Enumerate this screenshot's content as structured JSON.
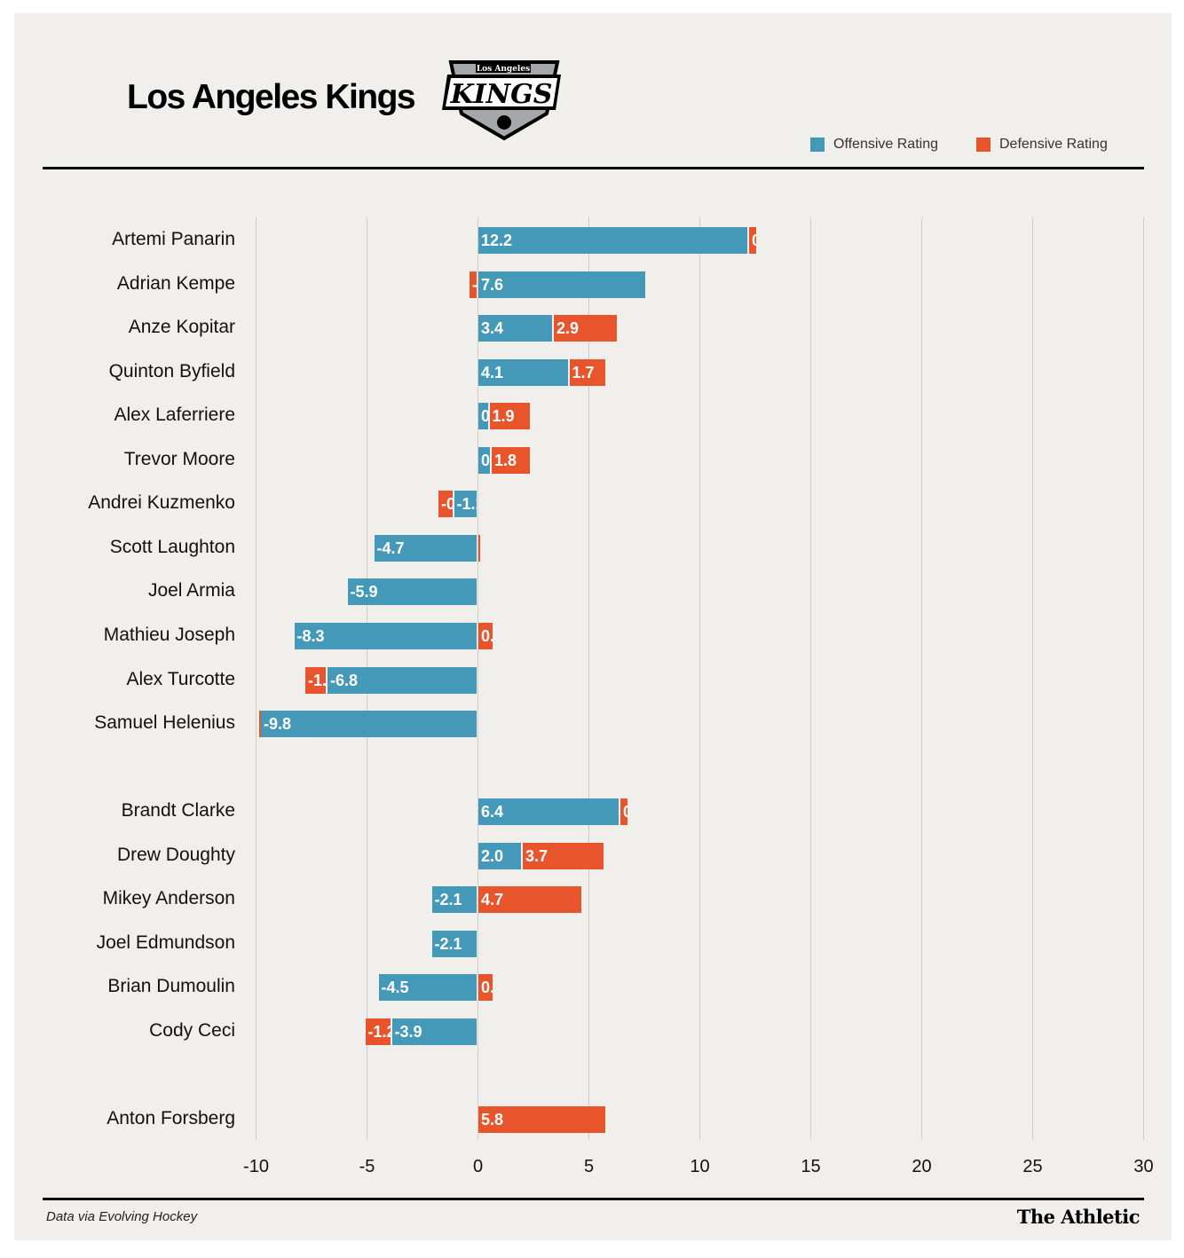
{
  "header": {
    "title": "Los Angeles Kings",
    "logo_text": [
      "Los Angeles",
      "KINGS"
    ]
  },
  "colors": {
    "offensive": "#4499b9",
    "defensive": "#e8542b",
    "background": "#f0efeb"
  },
  "footer": {
    "source": "Data via Evolving Hockey",
    "brand": "The Athletic"
  },
  "chart_data": {
    "type": "bar",
    "orientation": "horizontal",
    "stacked": true,
    "xlim": [
      -10,
      30
    ],
    "xticks": [
      -10,
      -5,
      0,
      5,
      10,
      15,
      20,
      25,
      30
    ],
    "grid": true,
    "legend_placement": "top-right",
    "series": [
      {
        "name": "Offensive Rating",
        "key": "off"
      },
      {
        "name": "Defensive Rating",
        "key": "def"
      }
    ],
    "groups": [
      [
        {
          "player": "Artemi Panarin",
          "off": 12.2,
          "def": 0.4
        },
        {
          "player": "Adrian Kempe",
          "off": 7.6,
          "def": -0.4
        },
        {
          "player": "Anze Kopitar",
          "off": 3.4,
          "def": 2.9
        },
        {
          "player": "Quinton Byfield",
          "off": 4.1,
          "def": 1.7
        },
        {
          "player": "Alex Laferriere",
          "off": 0.5,
          "def": 1.9
        },
        {
          "player": "Trevor Moore",
          "off": 0.6,
          "def": 1.8
        },
        {
          "player": "Andrei Kuzmenko",
          "off": -1.1,
          "def": -0.7
        },
        {
          "player": "Scott Laughton",
          "off": -4.7,
          "def": 0.1
        },
        {
          "player": "Joel Armia",
          "off": -5.9,
          "def": 0.0
        },
        {
          "player": "Mathieu Joseph",
          "off": -8.3,
          "def": 0.7
        },
        {
          "player": "Alex Turcotte",
          "off": -6.8,
          "def": -1.0
        },
        {
          "player": "Samuel Helenius",
          "off": -9.8,
          "def": -0.1
        }
      ],
      [
        {
          "player": "Brandt Clarke",
          "off": 6.4,
          "def": 0.4
        },
        {
          "player": "Drew Doughty",
          "off": 2.0,
          "def": 3.7
        },
        {
          "player": "Mikey Anderson",
          "off": -2.1,
          "def": 4.7
        },
        {
          "player": "Joel Edmundson",
          "off": -2.1,
          "def": 0.0
        },
        {
          "player": "Brian Dumoulin",
          "off": -4.5,
          "def": 0.7
        },
        {
          "player": "Cody Ceci",
          "off": -3.9,
          "def": -1.2
        }
      ],
      [
        {
          "player": "Anton Forsberg",
          "off": null,
          "def": 5.8
        }
      ]
    ]
  }
}
